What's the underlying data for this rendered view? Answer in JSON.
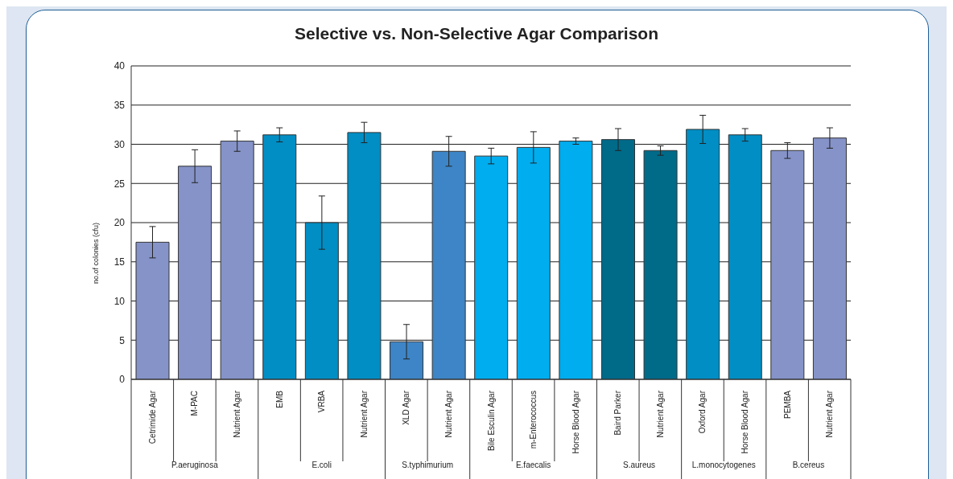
{
  "chart_data": {
    "type": "bar",
    "title": "Selective vs. Non-Selective Agar Comparison",
    "ylabel": "no.of colonies (cfu)",
    "categories": [
      "Cetrimide Agar",
      "M-PAC",
      "Nutrient Agar",
      "EMB",
      "VRBA",
      "Nutrient Agar",
      "XLD Agar",
      "Nutrient Agar",
      "Bile Esculin Agar",
      "m-Enterococcus",
      "Horse Blood Agar",
      "Baird Parker",
      "Nutrient Agar",
      "Oxford Agar",
      "Horse Blood Agar",
      "PEMBA",
      "Nutrient Agar"
    ],
    "values": [
      17.5,
      27.2,
      30.4,
      31.2,
      20.0,
      31.5,
      4.8,
      29.1,
      28.5,
      29.6,
      30.4,
      30.6,
      29.2,
      31.9,
      31.2,
      29.2,
      30.8
    ],
    "errors": [
      2.0,
      2.1,
      1.3,
      0.9,
      3.4,
      1.3,
      2.2,
      1.9,
      1.0,
      2.0,
      0.4,
      1.4,
      0.6,
      1.8,
      0.8,
      1.0,
      1.3
    ],
    "colors": [
      "#8593c8",
      "#8593c8",
      "#8593c8",
      "#008ec4",
      "#008ec4",
      "#008ec4",
      "#3d85c6",
      "#3d85c6",
      "#00adee",
      "#00adee",
      "#00adee",
      "#006a89",
      "#006a89",
      "#008ec4",
      "#008ec4",
      "#8593c8",
      "#8593c8"
    ],
    "annotations": [
      "P.aeruginosa",
      "E.coli",
      "S.typhimurium",
      "E.faecalis",
      "S.aureus",
      "L.monocytogenes",
      "B.cereus"
    ],
    "ylim": [
      0,
      40
    ],
    "yticks": [
      0,
      5,
      10,
      15,
      20,
      25,
      30,
      35,
      40
    ],
    "grid": "y"
  }
}
